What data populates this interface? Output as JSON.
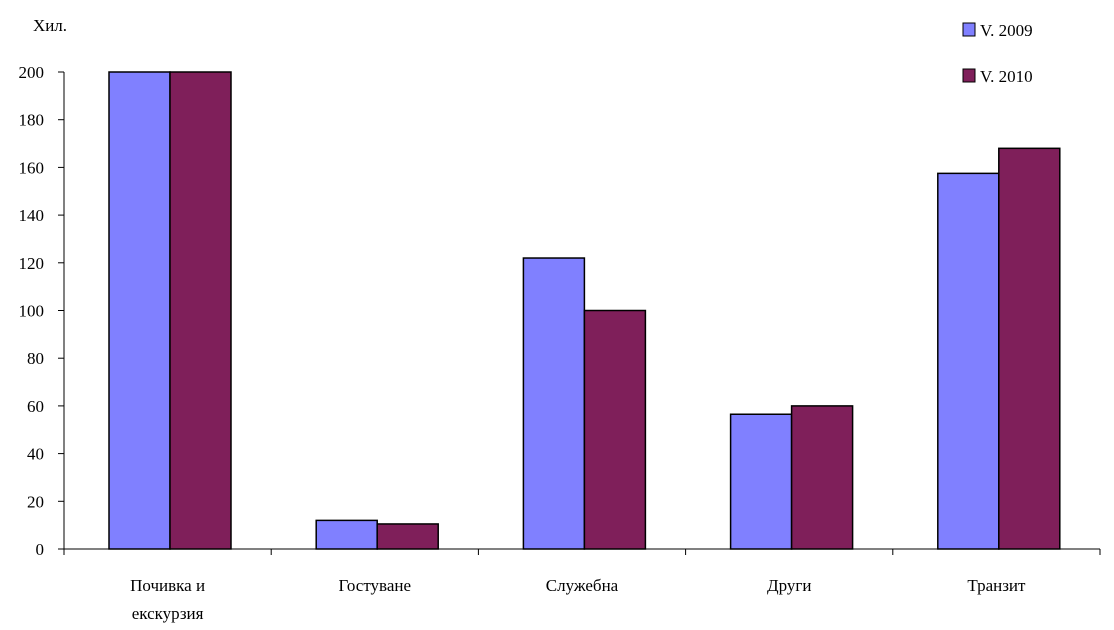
{
  "chart_data": {
    "type": "bar",
    "title": "",
    "ylabel": "Хил.",
    "xlabel": "",
    "ylim": [
      0,
      200
    ],
    "yticks": [
      0,
      20,
      40,
      60,
      80,
      100,
      120,
      140,
      160,
      180,
      200
    ],
    "categories": [
      [
        "Почивка и",
        "екскурзия"
      ],
      [
        "Гостуване"
      ],
      [
        "Служебна"
      ],
      [
        "Други"
      ],
      [
        "Транзит"
      ]
    ],
    "series": [
      {
        "name": "V. 2009",
        "color": "#8080ff",
        "values": [
          200,
          12,
          122,
          56.5,
          157.5
        ]
      },
      {
        "name": "V. 2010",
        "color": "#7f1f5a",
        "values": [
          200,
          10.5,
          100,
          60,
          168
        ]
      }
    ],
    "grid": false,
    "legend": "top-right"
  }
}
